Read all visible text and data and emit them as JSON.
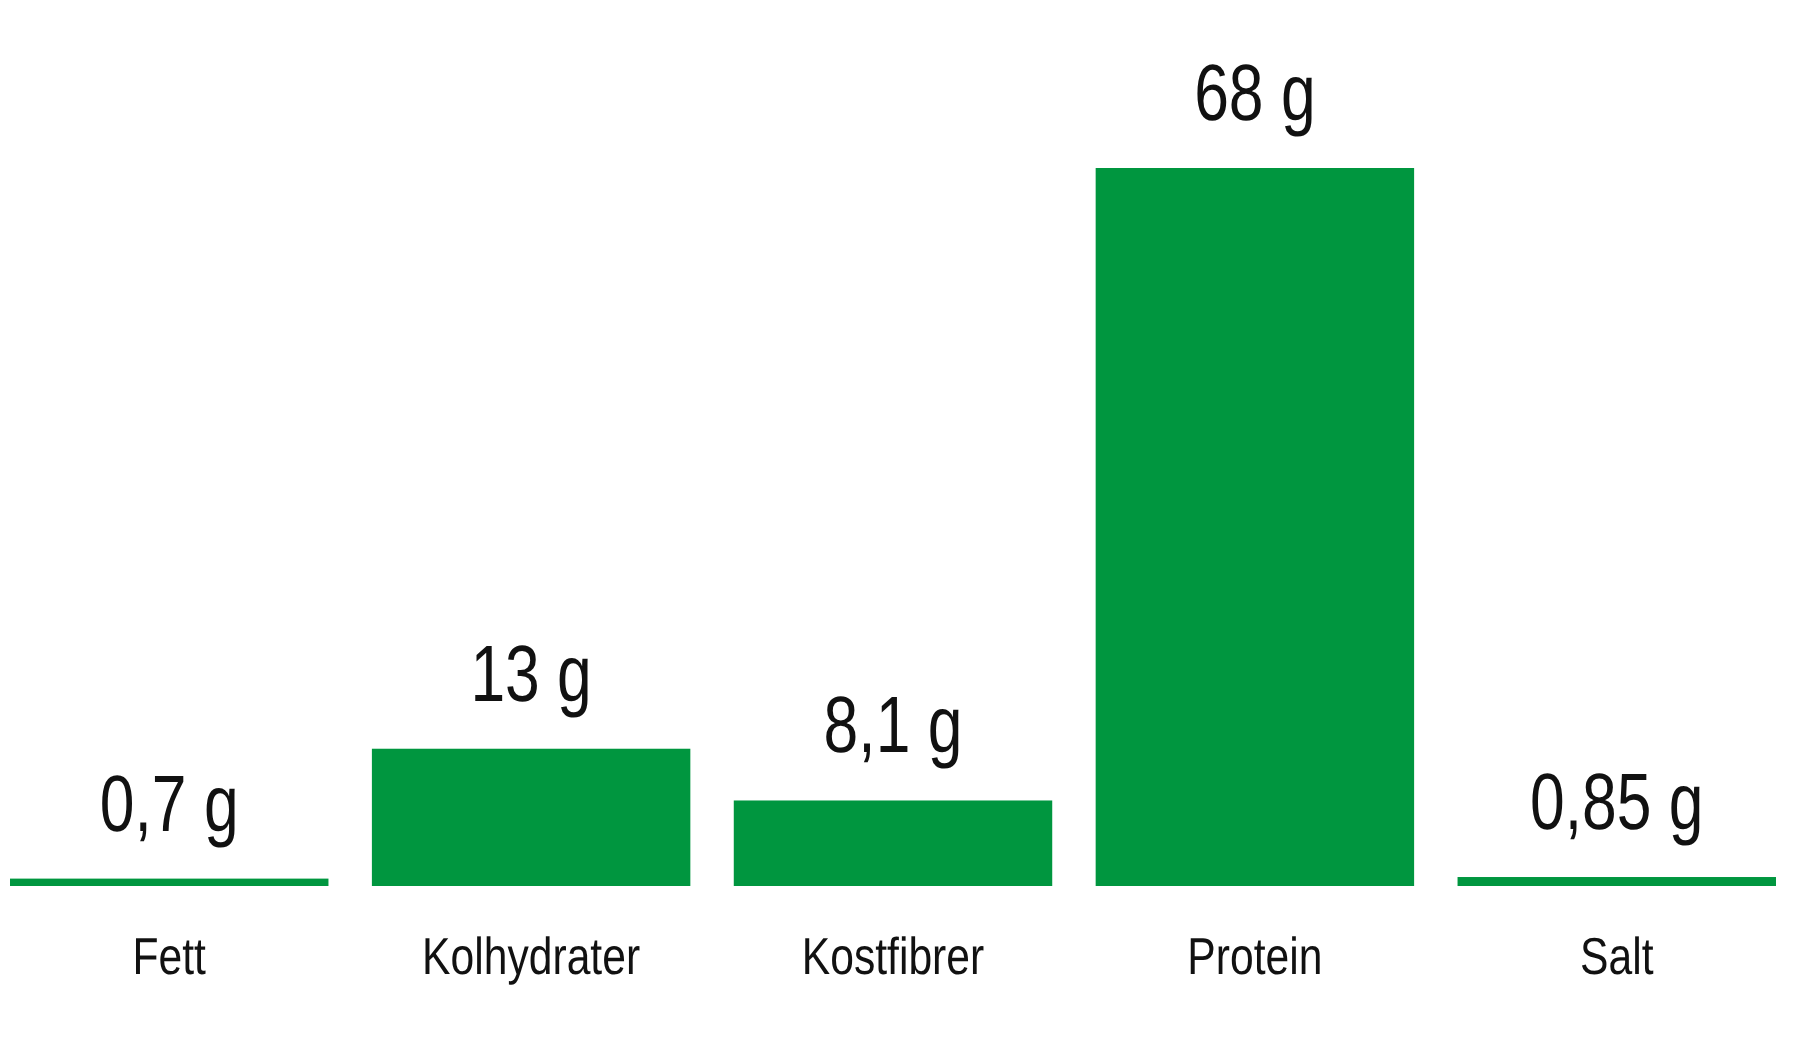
{
  "chart_data": {
    "type": "bar",
    "categories": [
      "Fett",
      "Kolhydrater",
      "Kostfibrer",
      "Protein",
      "Salt"
    ],
    "values": [
      0.7,
      13,
      8.1,
      68,
      0.85
    ],
    "value_labels": [
      "0,7 g",
      "13 g",
      "8,1 g",
      "68 g",
      "0,85 g"
    ],
    "color": "#00963f"
  }
}
